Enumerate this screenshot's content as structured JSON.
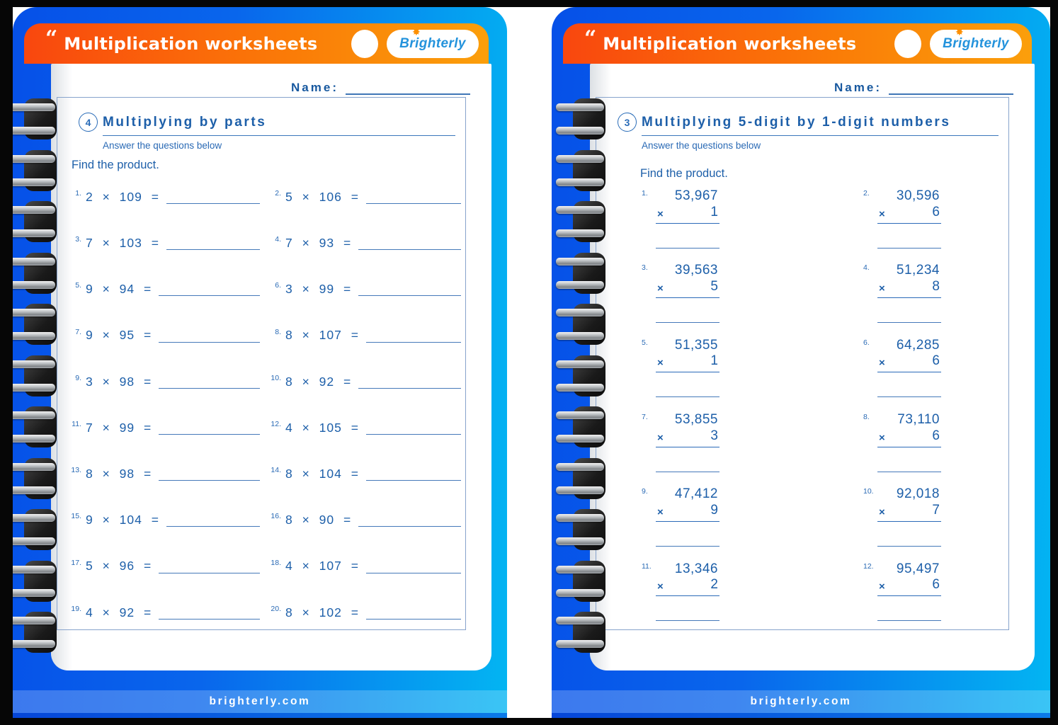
{
  "header": {
    "quote_mark": "“",
    "title": "Multiplication worksheets",
    "logo_text": "Brighterly",
    "sun_icon": "✸"
  },
  "name_label": "Name:",
  "footer_url": "brighterly.com",
  "pages": [
    {
      "number": "4",
      "title": "Multiplying by parts",
      "subtitle": "Answer the questions below",
      "instruction": "Find the product.",
      "format": "inline",
      "operator": "×",
      "equals": "=",
      "problems": [
        {
          "n": "1.",
          "a": "2",
          "b": "109"
        },
        {
          "n": "2.",
          "a": "5",
          "b": "106"
        },
        {
          "n": "3.",
          "a": "7",
          "b": "103"
        },
        {
          "n": "4.",
          "a": "7",
          "b": "93"
        },
        {
          "n": "5.",
          "a": "9",
          "b": "94"
        },
        {
          "n": "6.",
          "a": "3",
          "b": "99"
        },
        {
          "n": "7.",
          "a": "9",
          "b": "95"
        },
        {
          "n": "8.",
          "a": "8",
          "b": "107"
        },
        {
          "n": "9.",
          "a": "3",
          "b": "98"
        },
        {
          "n": "10.",
          "a": "8",
          "b": "92"
        },
        {
          "n": "11.",
          "a": "7",
          "b": "99"
        },
        {
          "n": "12.",
          "a": "4",
          "b": "105"
        },
        {
          "n": "13.",
          "a": "8",
          "b": "98"
        },
        {
          "n": "14.",
          "a": "8",
          "b": "104"
        },
        {
          "n": "15.",
          "a": "9",
          "b": "104"
        },
        {
          "n": "16.",
          "a": "8",
          "b": "90"
        },
        {
          "n": "17.",
          "a": "5",
          "b": "96"
        },
        {
          "n": "18.",
          "a": "4",
          "b": "107"
        },
        {
          "n": "19.",
          "a": "4",
          "b": "92"
        },
        {
          "n": "20.",
          "a": "8",
          "b": "102"
        }
      ]
    },
    {
      "number": "3",
      "title": "Multiplying 5-digit by 1-digit numbers",
      "subtitle": "Answer the questions below",
      "instruction": "Find the product.",
      "format": "vertical",
      "operator": "×",
      "problems": [
        {
          "n": "1.",
          "top": "53,967",
          "mult": "1"
        },
        {
          "n": "2.",
          "top": "30,596",
          "mult": "6"
        },
        {
          "n": "3.",
          "top": "39,563",
          "mult": "5"
        },
        {
          "n": "4.",
          "top": "51,234",
          "mult": "8"
        },
        {
          "n": "5.",
          "top": "51,355",
          "mult": "1"
        },
        {
          "n": "6.",
          "top": "64,285",
          "mult": "6"
        },
        {
          "n": "7.",
          "top": "53,855",
          "mult": "3"
        },
        {
          "n": "8.",
          "top": "73,110",
          "mult": "6"
        },
        {
          "n": "9.",
          "top": "47,412",
          "mult": "9"
        },
        {
          "n": "10.",
          "top": "92,018",
          "mult": "7"
        },
        {
          "n": "11.",
          "top": "13,346",
          "mult": "2"
        },
        {
          "n": "12.",
          "top": "95,497",
          "mult": "6"
        }
      ]
    }
  ],
  "colors": {
    "card_blue_left": "#0650E8",
    "card_blue_right": "#03B5F2",
    "header_orange_left": "#F9470E",
    "header_orange_right": "#FB9F0B",
    "ink_blue": "#1D5FA9",
    "logo_blue": "#2493DC",
    "sun_orange": "#FD8F01"
  }
}
